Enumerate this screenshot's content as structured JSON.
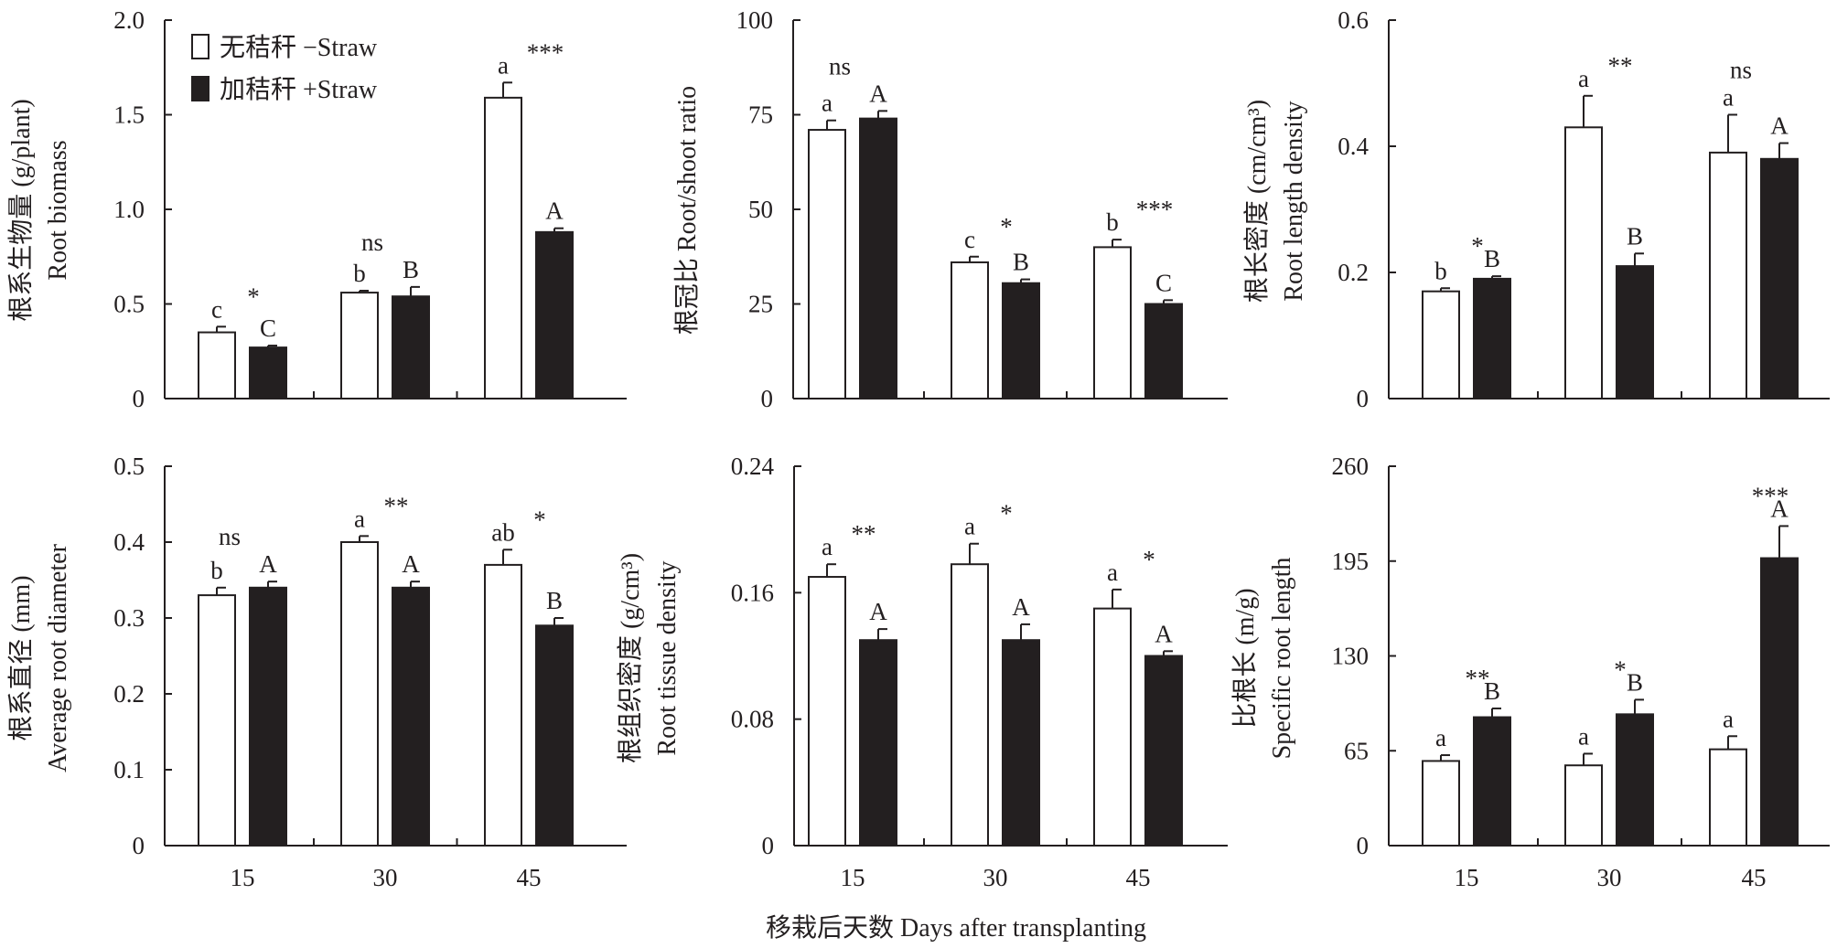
{
  "legend": {
    "series_1": "无秸秆 −Straw",
    "series_2": "加秸秆 +Straw",
    "color_1": "#ffffff",
    "color_2": "#231f20"
  },
  "common_xlabel": "移栽后天数 Days after transplanting",
  "chart_data": [
    {
      "type": "bar",
      "title": "",
      "ylabel_cn": "根系生物量 (g/plant)",
      "ylabel_en": "Root biomass",
      "categories": [
        "15",
        "30",
        "45"
      ],
      "ylim": [
        0,
        2.0
      ],
      "yticks": [
        "0",
        "0.5",
        "1.0",
        "1.5",
        "2.0"
      ],
      "ytick_values": [
        0,
        0.5,
        1.0,
        1.5,
        2.0
      ],
      "series": [
        {
          "name": "无秸秆 −Straw",
          "values": [
            0.35,
            0.56,
            1.59
          ],
          "errors": [
            0.03,
            0.01,
            0.08
          ],
          "letters": [
            "c",
            "b",
            "a"
          ]
        },
        {
          "name": "加秸秆 +Straw",
          "values": [
            0.27,
            0.54,
            0.88
          ],
          "errors": [
            0.01,
            0.05,
            0.02
          ],
          "letters": [
            "C",
            "B",
            "A"
          ]
        }
      ],
      "significance": [
        "*",
        "ns",
        "***"
      ],
      "xticks_shown": false
    },
    {
      "type": "bar",
      "title": "",
      "ylabel_cn": "根冠比",
      "ylabel_en": "Root/shoot ratio",
      "categories": [
        "15",
        "30",
        "45"
      ],
      "ylim": [
        0,
        100
      ],
      "yticks": [
        "0",
        "25",
        "50",
        "75",
        "100"
      ],
      "ytick_values": [
        0,
        25,
        50,
        75,
        100
      ],
      "series": [
        {
          "name": "无秸秆 −Straw",
          "values": [
            71,
            36,
            40
          ],
          "errors": [
            2.5,
            1.5,
            2
          ],
          "letters": [
            "a",
            "c",
            "b"
          ]
        },
        {
          "name": "加秸秆 +Straw",
          "values": [
            74,
            30.5,
            25
          ],
          "errors": [
            2,
            1,
            1
          ],
          "letters": [
            "A",
            "B",
            "C"
          ]
        }
      ],
      "significance": [
        "ns",
        "*",
        "***"
      ],
      "xticks_shown": false
    },
    {
      "type": "bar",
      "title": "",
      "ylabel_cn": "根长密度 (cm/cm³)",
      "ylabel_en": "Root length density",
      "categories": [
        "15",
        "30",
        "45"
      ],
      "ylim": [
        0,
        0.6
      ],
      "yticks": [
        "0",
        "0.2",
        "0.4",
        "0.6"
      ],
      "ytick_values": [
        0,
        0.2,
        0.4,
        0.6
      ],
      "series": [
        {
          "name": "无秸秆 −Straw",
          "values": [
            0.17,
            0.43,
            0.39
          ],
          "errors": [
            0.005,
            0.05,
            0.06
          ],
          "letters": [
            "b",
            "a",
            "a"
          ]
        },
        {
          "name": "加秸秆 +Straw",
          "values": [
            0.19,
            0.21,
            0.38
          ],
          "errors": [
            0.004,
            0.02,
            0.025
          ],
          "letters": [
            "B",
            "B",
            "A"
          ]
        }
      ],
      "significance": [
        "*",
        "**",
        "ns"
      ],
      "xticks_shown": false
    },
    {
      "type": "bar",
      "title": "",
      "ylabel_cn": "根系直径 (mm)",
      "ylabel_en": "Average root diameter",
      "categories": [
        "15",
        "30",
        "45"
      ],
      "ylim": [
        0,
        0.5
      ],
      "yticks": [
        "0",
        "0.1",
        "0.2",
        "0.3",
        "0.4",
        "0.5"
      ],
      "ytick_values": [
        0,
        0.1,
        0.2,
        0.3,
        0.4,
        0.5
      ],
      "series": [
        {
          "name": "无秸秆 −Straw",
          "values": [
            0.33,
            0.4,
            0.37
          ],
          "errors": [
            0.01,
            0.008,
            0.02
          ],
          "letters": [
            "b",
            "a",
            "ab"
          ]
        },
        {
          "name": "加秸秆 +Straw",
          "values": [
            0.34,
            0.34,
            0.29
          ],
          "errors": [
            0.008,
            0.008,
            0.01
          ],
          "letters": [
            "A",
            "A",
            "B"
          ]
        }
      ],
      "significance": [
        "ns",
        "**",
        "*"
      ],
      "xticks_shown": true
    },
    {
      "type": "bar",
      "title": "",
      "ylabel_cn": "根组织密度 (g/cm³)",
      "ylabel_en": "Root tissue density",
      "categories": [
        "15",
        "30",
        "45"
      ],
      "ylim": [
        0,
        0.24
      ],
      "yticks": [
        "0",
        "0.08",
        "0.16",
        "0.24"
      ],
      "ytick_values": [
        0,
        0.08,
        0.16,
        0.24
      ],
      "series": [
        {
          "name": "无秸秆 −Straw",
          "values": [
            0.17,
            0.178,
            0.15
          ],
          "errors": [
            0.008,
            0.013,
            0.012
          ],
          "letters": [
            "a",
            "a",
            "a"
          ]
        },
        {
          "name": "加秸秆 +Straw",
          "values": [
            0.13,
            0.13,
            0.12
          ],
          "errors": [
            0.007,
            0.01,
            0.003
          ],
          "letters": [
            "A",
            "A",
            "A"
          ]
        }
      ],
      "significance": [
        "**",
        "*",
        "*"
      ],
      "xticks_shown": true
    },
    {
      "type": "bar",
      "title": "",
      "ylabel_cn": "比根长 (m/g)",
      "ylabel_en": "Specific root length",
      "categories": [
        "15",
        "30",
        "45"
      ],
      "ylim": [
        0,
        260
      ],
      "yticks": [
        "0",
        "65",
        "130",
        "195",
        "260"
      ],
      "ytick_values": [
        0,
        65,
        130,
        195,
        260
      ],
      "series": [
        {
          "name": "无秸秆 −Straw",
          "values": [
            58,
            55,
            66
          ],
          "errors": [
            4,
            8,
            9
          ],
          "letters": [
            "a",
            "a",
            "a"
          ]
        },
        {
          "name": "加秸秆 +Straw",
          "values": [
            88,
            90,
            197
          ],
          "errors": [
            6,
            10,
            22
          ],
          "letters": [
            "B",
            "B",
            "A"
          ]
        }
      ],
      "significance": [
        "**",
        "*",
        "***"
      ],
      "xticks_shown": true
    }
  ]
}
